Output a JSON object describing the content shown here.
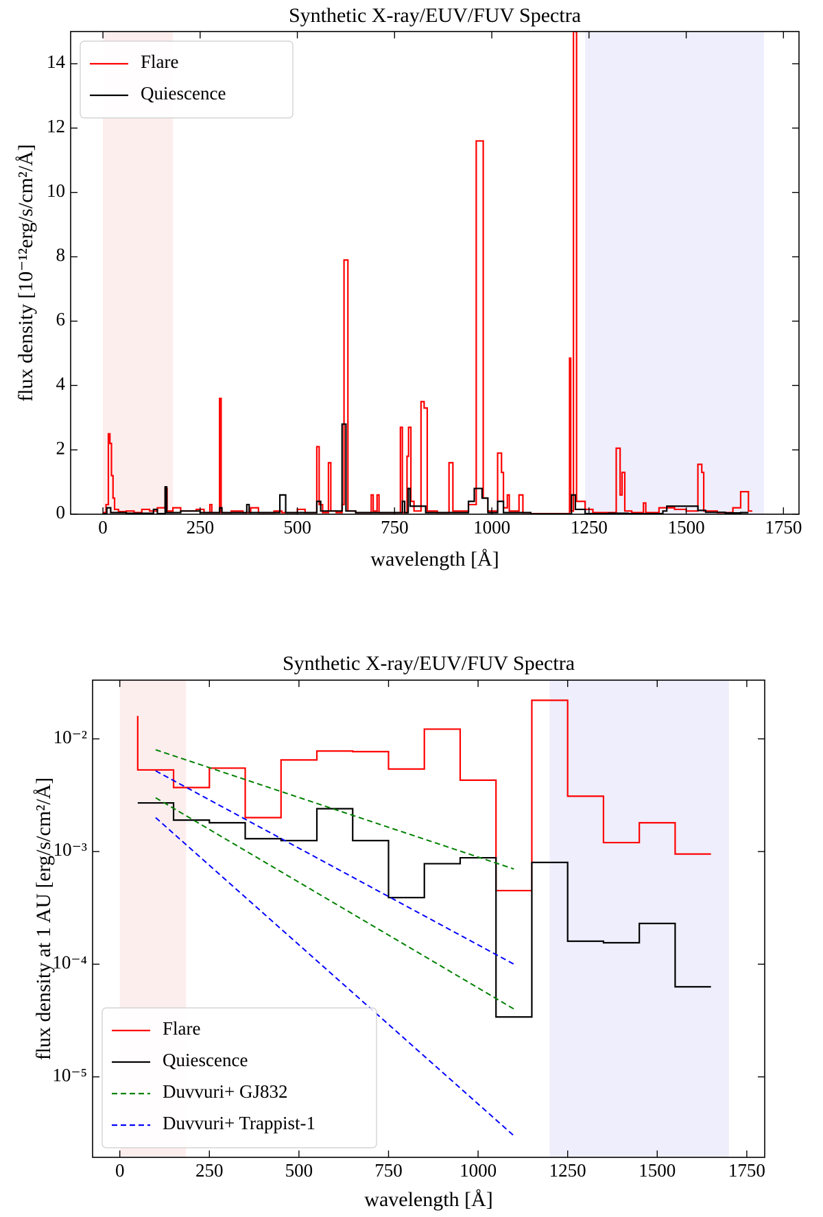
{
  "chart_data": [
    {
      "type": "line",
      "title": "Synthetic X-ray/EUV/FUV Spectra",
      "xlabel": "wavelength [Å]",
      "ylabel": "flux density [10⁻¹²erg/s/cm²/Å]",
      "xlim": [
        -83,
        1790
      ],
      "ylim": [
        0,
        15
      ],
      "xticks": [
        0,
        250,
        500,
        750,
        1000,
        1250,
        1500,
        1750
      ],
      "yticks": [
        0,
        2,
        4,
        6,
        8,
        10,
        12,
        14
      ],
      "spans": [
        {
          "x0": 0,
          "x1": 180,
          "color": "#fdeeee"
        },
        {
          "x0": 1240,
          "x1": 1700,
          "color": "#eeeefd"
        }
      ],
      "legend": "upper left",
      "series": [
        {
          "name": "Flare",
          "color": "#ff0000",
          "step": "post",
          "x": [
            0,
            8,
            14,
            18,
            22,
            26,
            30,
            40,
            60,
            80,
            100,
            120,
            140,
            160,
            165,
            180,
            200,
            240,
            260,
            275,
            280,
            300,
            304,
            330,
            360,
            380,
            400,
            440,
            460,
            500,
            520,
            550,
            556,
            565,
            580,
            586,
            600,
            615,
            620,
            630,
            650,
            690,
            695,
            705,
            710,
            765,
            770,
            782,
            786,
            792,
            800,
            818,
            826,
            834,
            860,
            890,
            900,
            940,
            960,
            978,
            990,
            1015,
            1025,
            1030,
            1040,
            1045,
            1070,
            1080,
            1100,
            1200,
            1203,
            1210,
            1218,
            1240,
            1260,
            1320,
            1330,
            1335,
            1342,
            1360,
            1390,
            1396,
            1430,
            1470,
            1500,
            1530,
            1540,
            1545,
            1580,
            1620,
            1640,
            1660,
            1670
          ],
          "values": [
            0.05,
            0.3,
            2.5,
            2.2,
            1.2,
            0.5,
            0.15,
            0.08,
            0.1,
            0.05,
            0.15,
            0.1,
            0.2,
            0.8,
            0.1,
            0.2,
            0.1,
            0.15,
            0.05,
            0.3,
            0.05,
            3.6,
            0.05,
            0.1,
            0.05,
            0.2,
            0.05,
            0.1,
            0.05,
            0.15,
            0.05,
            2.1,
            0.3,
            0.05,
            1.6,
            0.1,
            0.05,
            0.3,
            7.9,
            0.1,
            0.05,
            0.6,
            0.1,
            0.6,
            0.05,
            2.7,
            0.05,
            1.8,
            2.7,
            0.4,
            0.1,
            3.5,
            3.3,
            0.1,
            0.05,
            1.6,
            0.1,
            0.3,
            11.6,
            0.5,
            0.1,
            1.9,
            1.3,
            0.2,
            0.6,
            0.1,
            0.6,
            0.05,
            0.02,
            4.85,
            0.1,
            15,
            0.4,
            0.15,
            0.05,
            2.05,
            0.6,
            1.3,
            0.1,
            0.05,
            0.35,
            0.05,
            0.2,
            0.15,
            0.1,
            1.55,
            1.3,
            0.1,
            0.05,
            0.2,
            0.7,
            0.1,
            0.1
          ]
        },
        {
          "name": "Quiescence",
          "color": "#000000",
          "step": "post",
          "x": [
            0,
            10,
            20,
            60,
            130,
            140,
            160,
            164,
            200,
            250,
            300,
            306,
            370,
            376,
            440,
            455,
            470,
            550,
            560,
            615,
            625,
            650,
            700,
            770,
            776,
            785,
            790,
            830,
            940,
            955,
            975,
            990,
            1015,
            1030,
            1100,
            1205,
            1215,
            1240,
            1300,
            1350,
            1440,
            1450,
            1530,
            1550,
            1600,
            1640,
            1660
          ],
          "values": [
            0.02,
            0.2,
            0.05,
            0.03,
            0.15,
            0.02,
            0.85,
            0.05,
            0.1,
            0.05,
            0.2,
            0.05,
            0.3,
            0.05,
            0.05,
            0.6,
            0.05,
            0.4,
            0.1,
            2.8,
            0.1,
            0.05,
            0.05,
            0.4,
            0.05,
            0.8,
            0.25,
            0.05,
            0.4,
            0.8,
            0.5,
            0.05,
            0.4,
            0.05,
            0.01,
            0.6,
            0.15,
            0.02,
            0.03,
            0.02,
            0.1,
            0.25,
            0.12,
            0.06,
            0.04,
            0.05,
            0.05
          ]
        }
      ]
    },
    {
      "type": "line",
      "title": "Synthetic X-ray/EUV/FUV Spectra",
      "xlabel": "wavelength [Å]",
      "ylabel": "flux density at 1 AU [erg/s/cm²/Å]",
      "log_y": true,
      "xlim": [
        -76,
        1800
      ],
      "ylim": [
        1.93e-06,
        0.0332
      ],
      "xticks": [
        0,
        250,
        500,
        750,
        1000,
        1250,
        1500,
        1750
      ],
      "yticks": [
        {
          "value": 0.01,
          "label": "10⁻²"
        },
        {
          "value": 0.001,
          "label": "10⁻³"
        },
        {
          "value": 0.0001,
          "label": "10⁻⁴"
        },
        {
          "value": 1e-05,
          "label": "10⁻⁵"
        }
      ],
      "spans": [
        {
          "x0": 0,
          "x1": 185,
          "color": "#fdeeee"
        },
        {
          "x0": 1200,
          "x1": 1700,
          "color": "#eeeefd"
        }
      ],
      "legend": "lower left",
      "series": [
        {
          "name": "Flare",
          "color": "#ff0000",
          "step": "post",
          "x": [
            50,
            50,
            150,
            250,
            350,
            450,
            550,
            650,
            750,
            850,
            950,
            1050,
            1150,
            1250,
            1350,
            1450,
            1550,
            1650
          ],
          "values": [
            0.016,
            0.0053,
            0.0037,
            0.0055,
            0.002,
            0.0065,
            0.0078,
            0.0077,
            0.0054,
            0.0122,
            0.0043,
            0.00045,
            0.022,
            0.0031,
            0.0012,
            0.0018,
            0.00095,
            0.00095
          ]
        },
        {
          "name": "Quiescence",
          "color": "#000000",
          "step": "post",
          "x": [
            50,
            150,
            250,
            350,
            450,
            550,
            650,
            750,
            850,
            950,
            1050,
            1150,
            1250,
            1350,
            1450,
            1550,
            1650
          ],
          "values": [
            0.0027,
            0.0019,
            0.0018,
            0.0013,
            0.00125,
            0.0024,
            0.00125,
            0.00039,
            0.00078,
            0.00088,
            3.4e-05,
            0.0008,
            0.00016,
            0.000155,
            0.00023,
            6.3e-05,
            6.3e-05
          ]
        },
        {
          "name": "Duvvuri+ GJ832",
          "color": "#008000",
          "dashed": true,
          "x": [
            100,
            1100,
            null,
            100,
            1100
          ],
          "values": [
            0.008,
            0.0007,
            null,
            0.003,
            4e-05
          ]
        },
        {
          "name": "Duvvuri+ Trappist-1",
          "color": "#0000ff",
          "dashed": true,
          "x": [
            100,
            1100,
            null,
            100,
            1100
          ],
          "values": [
            0.0052,
            0.0001,
            null,
            0.002,
            3e-06
          ]
        }
      ]
    }
  ]
}
